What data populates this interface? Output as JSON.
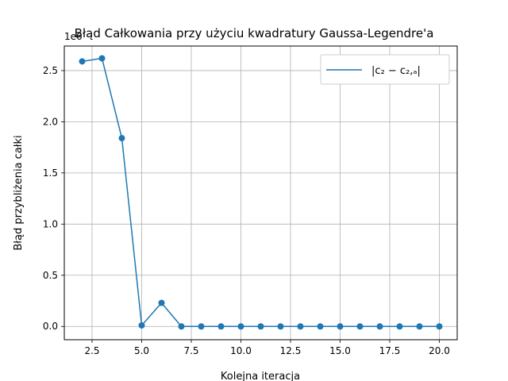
{
  "chart_data": {
    "type": "line",
    "title": "Błąd Całkowania przy użyciu kwadratury Gaussa-Legendre'a",
    "xlabel": "Kolejna iteracja",
    "ylabel": "Błąd przybliżenia całki",
    "y_offset_text": "1e6",
    "xlim": [
      1.1,
      20.9
    ],
    "ylim": [
      -0.13,
      2.74
    ],
    "x_ticks": [
      2.5,
      5.0,
      7.5,
      10.0,
      12.5,
      15.0,
      17.5,
      20.0
    ],
    "x_tick_labels": [
      "2.5",
      "5.0",
      "7.5",
      "10.0",
      "12.5",
      "15.0",
      "17.5",
      "20.0"
    ],
    "y_ticks": [
      0.0,
      0.5,
      1.0,
      1.5,
      2.0,
      2.5
    ],
    "y_tick_labels": [
      "0.0",
      "0.5",
      "1.0",
      "1.5",
      "2.0",
      "2.5"
    ],
    "grid": true,
    "legend_position": "top-right",
    "series": [
      {
        "name": "|c₂ − c₂,ₐ|",
        "color": "#1f77b4",
        "x": [
          2,
          3,
          4,
          5,
          6,
          7,
          8,
          9,
          10,
          11,
          12,
          13,
          14,
          15,
          16,
          17,
          18,
          19,
          20
        ],
        "y": [
          2.59,
          2.62,
          1.84,
          0.01,
          0.23,
          0.0,
          0.0,
          0.0,
          0.0,
          0.0,
          0.0,
          0.0,
          0.0,
          0.0,
          0.0,
          0.0,
          0.0,
          0.0,
          0.0
        ]
      }
    ]
  }
}
